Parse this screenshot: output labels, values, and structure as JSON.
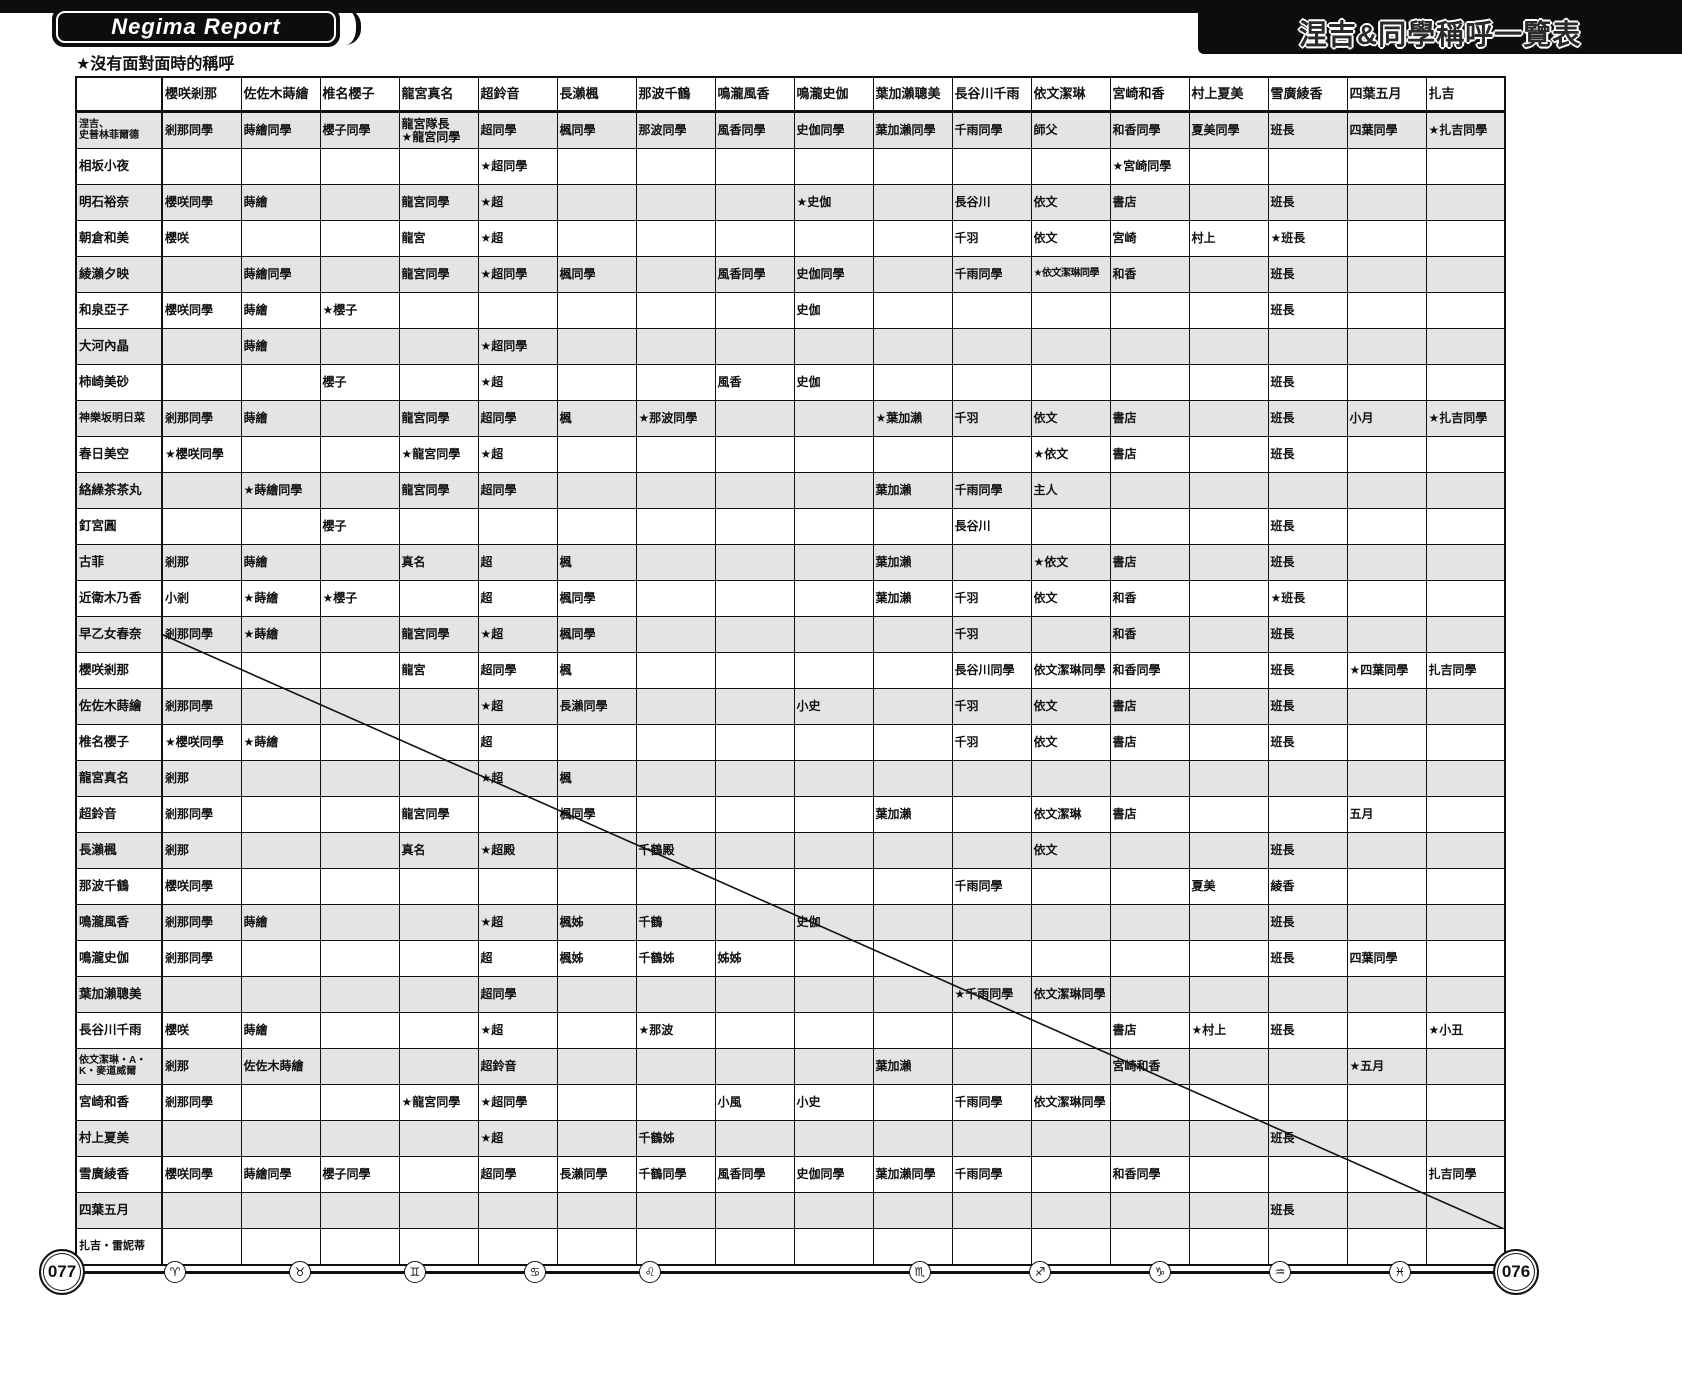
{
  "page": {
    "logo": "Negima Report",
    "title": "涅吉&同學稱呼一覽表",
    "note": "★沒有面對面時的稱呼",
    "page_number_left": "077",
    "page_number_right": "076",
    "zodiac_icons": [
      "♈",
      "♉",
      "♊",
      "♋",
      "♌",
      "♏",
      "♐",
      "♑",
      "♒",
      "♓"
    ],
    "colors": {
      "shaded_row": "#e4e4e4",
      "border": "#111111",
      "band": "#0d0d0d"
    }
  },
  "chart_data": {
    "type": "table",
    "note": "Cells show how the row character addresses the column character; ★ marks names used when not face to face; a diagonal line crosses each character's own cell.",
    "columns": [
      "櫻咲剎那",
      "佐佐木蒔繪",
      "椎名櫻子",
      "龍宮真名",
      "超鈴音",
      "長瀨楓",
      "那波千鶴",
      "鳴瀧風香",
      "鳴瀧史伽",
      "葉加瀨聰美",
      "長谷川千雨",
      "依文潔琳",
      "宮崎和香",
      "村上夏美",
      "雪廣綾香",
      "四葉五月",
      "扎吉"
    ],
    "rows": [
      {
        "label": "涅吉、\n史普林菲爾德",
        "cells": [
          "剎那同學",
          "蒔繪同學",
          "櫻子同學",
          "龍宮隊長\n★龍宮同學",
          "超同學",
          "楓同學",
          "那波同學",
          "風香同學",
          "史伽同學",
          "葉加瀨同學",
          "千雨同學",
          "師父",
          "和香同學",
          "夏美同學",
          "班長",
          "四葉同學",
          "★扎吉同學"
        ]
      },
      {
        "label": "相坂小夜",
        "cells": [
          "",
          "",
          "",
          "",
          "★超同學",
          "",
          "",
          "",
          "",
          "",
          "",
          "",
          "★宮崎同學",
          "",
          "",
          "",
          ""
        ]
      },
      {
        "label": "明石裕奈",
        "cells": [
          "櫻咲同學",
          "蒔繪",
          "",
          "龍宮同學",
          "★超",
          "",
          "",
          "",
          "★史伽",
          "",
          "長谷川",
          "依文",
          "書店",
          "",
          "班長",
          "",
          ""
        ]
      },
      {
        "label": "朝倉和美",
        "cells": [
          "櫻咲",
          "",
          "",
          "龍宮",
          "★超",
          "",
          "",
          "",
          "",
          "",
          "千羽",
          "依文",
          "宮崎",
          "村上",
          "★班長",
          "",
          ""
        ]
      },
      {
        "label": "綾瀨夕映",
        "cells": [
          "",
          "蒔繪同學",
          "",
          "龍宮同學",
          "★超同學",
          "楓同學",
          "",
          "風香同學",
          "史伽同學",
          "",
          "千雨同學",
          "★依文潔琳同學",
          "和香",
          "",
          "班長",
          "",
          ""
        ]
      },
      {
        "label": "和泉亞子",
        "cells": [
          "櫻咲同學",
          "蒔繪",
          "★櫻子",
          "",
          "",
          "",
          "",
          "",
          "史伽",
          "",
          "",
          "",
          "",
          "",
          "班長",
          "",
          ""
        ]
      },
      {
        "label": "大河內晶",
        "cells": [
          "",
          "蒔繪",
          "",
          "",
          "★超同學",
          "",
          "",
          "",
          "",
          "",
          "",
          "",
          "",
          "",
          "",
          "",
          ""
        ]
      },
      {
        "label": "柿崎美砂",
        "cells": [
          "",
          "",
          "櫻子",
          "",
          "★超",
          "",
          "",
          "風香",
          "史伽",
          "",
          "",
          "",
          "",
          "",
          "班長",
          "",
          ""
        ]
      },
      {
        "label": "神樂坂明日菜",
        "cells": [
          "剎那同學",
          "蒔繪",
          "",
          "龍宮同學",
          "超同學",
          "楓",
          "★那波同學",
          "",
          "",
          "★葉加瀨",
          "千羽",
          "依文",
          "書店",
          "",
          "班長",
          "小月",
          "★扎吉同學"
        ]
      },
      {
        "label": "春日美空",
        "cells": [
          "★櫻咲同學",
          "",
          "",
          "★龍宮同學",
          "★超",
          "",
          "",
          "",
          "",
          "",
          "",
          "★依文",
          "書店",
          "",
          "班長",
          "",
          ""
        ]
      },
      {
        "label": "絡繰茶茶丸",
        "cells": [
          "",
          "★蒔繪同學",
          "",
          "龍宮同學",
          "超同學",
          "",
          "",
          "",
          "",
          "葉加瀨",
          "千雨同學",
          "主人",
          "",
          "",
          "",
          "",
          ""
        ]
      },
      {
        "label": "釘宮圓",
        "cells": [
          "",
          "",
          "櫻子",
          "",
          "",
          "",
          "",
          "",
          "",
          "",
          "長谷川",
          "",
          "",
          "",
          "班長",
          "",
          ""
        ]
      },
      {
        "label": "古菲",
        "cells": [
          "剎那",
          "蒔繪",
          "",
          "真名",
          "超",
          "楓",
          "",
          "",
          "",
          "葉加瀨",
          "",
          "★依文",
          "書店",
          "",
          "班長",
          "",
          ""
        ]
      },
      {
        "label": "近衛木乃香",
        "cells": [
          "小剎",
          "★蒔繪",
          "★櫻子",
          "",
          "超",
          "楓同學",
          "",
          "",
          "",
          "葉加瀨",
          "千羽",
          "依文",
          "和香",
          "",
          "★班長",
          "",
          ""
        ]
      },
      {
        "label": "早乙女春奈",
        "cells": [
          "剎那同學",
          "★蒔繪",
          "",
          "龍宮同學",
          "★超",
          "楓同學",
          "",
          "",
          "",
          "",
          "千羽",
          "",
          "和香",
          "",
          "班長",
          "",
          ""
        ]
      },
      {
        "label": "櫻咲剎那",
        "cells": [
          null,
          "",
          "",
          "龍宮",
          "超同學",
          "楓",
          "",
          "",
          "",
          "",
          "長谷川同學",
          "依文潔琳同學",
          "和香同學",
          "",
          "班長",
          "★四葉同學",
          "扎吉同學"
        ]
      },
      {
        "label": "佐佐木蒔繪",
        "cells": [
          "剎那同學",
          null,
          "",
          "",
          "★超",
          "長瀨同學",
          "",
          "",
          "小史",
          "",
          "千羽",
          "依文",
          "書店",
          "",
          "班長",
          "",
          ""
        ]
      },
      {
        "label": "椎名櫻子",
        "cells": [
          "★櫻咲同學",
          "★蒔繪",
          null,
          "",
          "超",
          "",
          "",
          "",
          "",
          "",
          "千羽",
          "依文",
          "書店",
          "",
          "班長",
          "",
          ""
        ]
      },
      {
        "label": "龍宮真名",
        "cells": [
          "剎那",
          "",
          "",
          null,
          "★超",
          "楓",
          "",
          "",
          "",
          "",
          "",
          "",
          "",
          "",
          "",
          "",
          ""
        ]
      },
      {
        "label": "超鈴音",
        "cells": [
          "剎那同學",
          "",
          "",
          "龍宮同學",
          null,
          "楓同學",
          "",
          "",
          "",
          "葉加瀨",
          "",
          "依文潔琳",
          "書店",
          "",
          "",
          "五月",
          ""
        ]
      },
      {
        "label": "長瀨楓",
        "cells": [
          "剎那",
          "",
          "",
          "真名",
          "★超殿",
          null,
          "千鶴殿",
          "",
          "",
          "",
          "",
          "依文",
          "",
          "",
          "班長",
          "",
          ""
        ]
      },
      {
        "label": "那波千鶴",
        "cells": [
          "櫻咲同學",
          "",
          "",
          "",
          "",
          "",
          null,
          "",
          "",
          "",
          "千雨同學",
          "",
          "",
          "夏美",
          "綾香",
          "",
          ""
        ]
      },
      {
        "label": "鳴瀧風香",
        "cells": [
          "剎那同學",
          "蒔繪",
          "",
          "",
          "★超",
          "楓姊",
          "千鶴",
          null,
          "史伽",
          "",
          "",
          "",
          "",
          "",
          "班長",
          "",
          ""
        ]
      },
      {
        "label": "鳴瀧史伽",
        "cells": [
          "剎那同學",
          "",
          "",
          "",
          "超",
          "楓姊",
          "千鶴姊",
          "姊姊",
          null,
          "",
          "",
          "",
          "",
          "",
          "班長",
          "四葉同學",
          ""
        ]
      },
      {
        "label": "葉加瀨聰美",
        "cells": [
          "",
          "",
          "",
          "",
          "超同學",
          "",
          "",
          "",
          "",
          null,
          "★千雨同學",
          "依文潔琳同學",
          "",
          "",
          "",
          "",
          ""
        ]
      },
      {
        "label": "長谷川千雨",
        "cells": [
          "櫻咲",
          "蒔繪",
          "",
          "",
          "★超",
          "",
          "★那波",
          "",
          "",
          "",
          null,
          "",
          "書店",
          "★村上",
          "班長",
          "",
          "★小丑"
        ]
      },
      {
        "label": "依文潔琳・A・K・麥道威爾",
        "cells": [
          "剎那",
          "佐佐木蒔繪",
          "",
          "",
          "超鈴音",
          "",
          "",
          "",
          "",
          "葉加瀨",
          "",
          null,
          "宮崎和香",
          "",
          "",
          "★五月",
          ""
        ]
      },
      {
        "label": "宮崎和香",
        "cells": [
          "剎那同學",
          "",
          "",
          "★龍宮同學",
          "★超同學",
          "",
          "",
          "小風",
          "小史",
          "",
          "千雨同學",
          "依文潔琳同學",
          null,
          "",
          "",
          "",
          ""
        ]
      },
      {
        "label": "村上夏美",
        "cells": [
          "",
          "",
          "",
          "",
          "★超",
          "",
          "千鶴姊",
          "",
          "",
          "",
          "",
          "",
          "",
          null,
          "班長",
          "",
          ""
        ]
      },
      {
        "label": "雪廣綾香",
        "cells": [
          "櫻咲同學",
          "蒔繪同學",
          "櫻子同學",
          "",
          "超同學",
          "長瀨同學",
          "千鶴同學",
          "風香同學",
          "史伽同學",
          "葉加瀨同學",
          "千雨同學",
          "",
          "和香同學",
          "",
          null,
          "",
          "扎吉同學"
        ]
      },
      {
        "label": "四葉五月",
        "cells": [
          "",
          "",
          "",
          "",
          "",
          "",
          "",
          "",
          "",
          "",
          "",
          "",
          "",
          "",
          "班長",
          null,
          ""
        ]
      },
      {
        "label": "扎吉・雷妮蒂",
        "cells": [
          "",
          "",
          "",
          "",
          "",
          "",
          "",
          "",
          "",
          "",
          "",
          "",
          "",
          "",
          "",
          "",
          null
        ]
      }
    ]
  }
}
